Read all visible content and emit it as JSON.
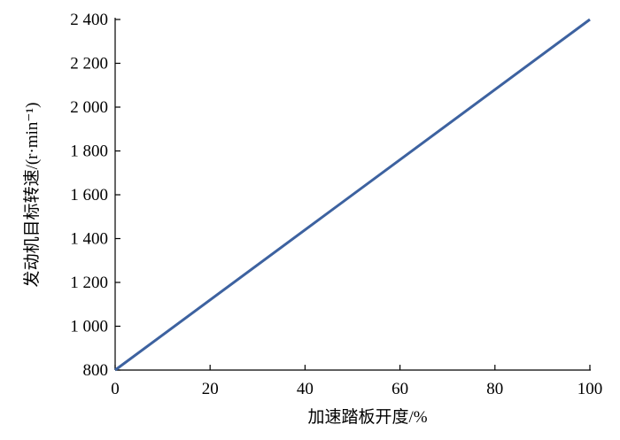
{
  "chart_data": {
    "type": "line",
    "x_label": "加速踏板开度/%",
    "y_label": "发动机目标转速/(r·min⁻¹)",
    "x": [
      0,
      100
    ],
    "series": [
      {
        "color": "#3d62a0",
        "values": [
          800,
          2400
        ]
      }
    ],
    "xlim": [
      0,
      100
    ],
    "xticks": [
      0,
      20,
      40,
      60,
      80,
      100
    ],
    "ylim": [
      800,
      2400
    ],
    "yticks": [
      800,
      {
        "value": 1000,
        "label": "1 000"
      },
      {
        "value": 1200,
        "label": "1 200"
      },
      {
        "value": 1400,
        "label": "1 400"
      },
      {
        "value": 1600,
        "label": "1 600"
      },
      {
        "value": 1800,
        "label": "1 800"
      },
      {
        "value": 2000,
        "label": "2 000"
      },
      {
        "value": 2200,
        "label": "2 200"
      },
      {
        "value": 2400,
        "label": "2 400"
      }
    ],
    "grid": false
  }
}
